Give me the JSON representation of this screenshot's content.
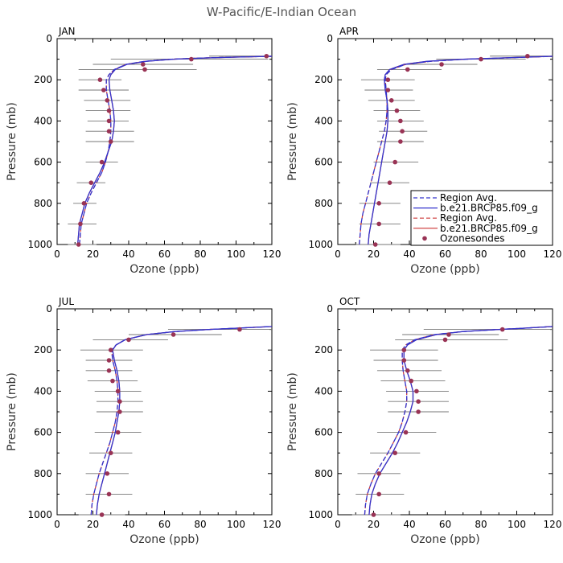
{
  "title": "W-Pacific/E-Indian Ocean",
  "chart_data": {
    "type": "line",
    "xlabel": "Ozone (ppb)",
    "ylabel": "Pressure (mb)",
    "xlim": [
      0,
      120
    ],
    "ylim": [
      1000,
      0
    ],
    "y_inverted": true,
    "xticks": [
      0,
      20,
      40,
      60,
      80,
      100,
      120
    ],
    "yticks": [
      0,
      200,
      400,
      600,
      800,
      1000
    ],
    "legend": {
      "location": "APR panel, right",
      "entries": [
        {
          "label": "Region Avg.",
          "color": "#3333cc",
          "style": "dashed"
        },
        {
          "label": "b.e21.BRCP85.f09_g",
          "color": "#3333cc",
          "style": "solid"
        },
        {
          "label": "Region Avg.",
          "color": "#cc3333",
          "style": "dashed"
        },
        {
          "label": "b.e21.BRCP85.f09_g",
          "color": "#cc3333",
          "style": "solid"
        },
        {
          "label": "Ozonesondes",
          "color": "#993355",
          "style": "marker"
        }
      ]
    },
    "panels": [
      {
        "label": "JAN",
        "model_pressure": [
          1000,
          950,
          900,
          850,
          800,
          750,
          700,
          650,
          600,
          550,
          500,
          450,
          400,
          350,
          300,
          250,
          200,
          175,
          150,
          125,
          110,
          100,
          95,
          90,
          86
        ],
        "model_solid": [
          11.5,
          12,
          12.5,
          14,
          15.5,
          18,
          21,
          24,
          26.5,
          28.5,
          30.5,
          31.5,
          32,
          31.5,
          30.5,
          29.5,
          29,
          30,
          32.5,
          39,
          50,
          65,
          80,
          100,
          120
        ],
        "model_dashed": [
          12.5,
          13,
          13.5,
          15,
          16.5,
          19,
          22,
          25,
          27,
          28.5,
          29.5,
          30,
          30,
          29.5,
          28.5,
          27.5,
          27.5,
          29,
          32,
          38.5,
          49,
          64,
          78,
          98,
          120
        ],
        "sondes": [
          {
            "p": 1000,
            "o3": 12,
            "lo": 6,
            "hi": 22
          },
          {
            "p": 900,
            "o3": 13,
            "lo": 6,
            "hi": 22
          },
          {
            "p": 800,
            "o3": 15,
            "lo": 9,
            "hi": 22
          },
          {
            "p": 700,
            "o3": 19,
            "lo": 11,
            "hi": 27
          },
          {
            "p": 600,
            "o3": 25,
            "lo": 16,
            "hi": 34
          },
          {
            "p": 500,
            "o3": 30,
            "lo": 16,
            "hi": 43
          },
          {
            "p": 450,
            "o3": 29,
            "lo": 16,
            "hi": 43
          },
          {
            "p": 400,
            "o3": 29,
            "lo": 17,
            "hi": 40
          },
          {
            "p": 350,
            "o3": 29,
            "lo": 16,
            "hi": 41
          },
          {
            "p": 300,
            "o3": 28,
            "lo": 15,
            "hi": 41
          },
          {
            "p": 250,
            "o3": 26,
            "lo": 12,
            "hi": 40
          },
          {
            "p": 200,
            "o3": 24,
            "lo": 12,
            "hi": 36
          },
          {
            "p": 150,
            "o3": 49,
            "lo": 12,
            "hi": 78
          },
          {
            "p": 125,
            "o3": 48,
            "lo": 20,
            "hi": 76
          },
          {
            "p": 100,
            "o3": 75,
            "lo": 30,
            "hi": 118
          },
          {
            "p": 85,
            "o3": 117,
            "lo": 85,
            "hi": 120
          }
        ]
      },
      {
        "label": "APR",
        "model_pressure": [
          1000,
          950,
          900,
          850,
          800,
          750,
          700,
          650,
          600,
          550,
          500,
          450,
          400,
          350,
          300,
          250,
          200,
          175,
          150,
          125,
          110,
          100,
          95,
          90,
          86
        ],
        "model_solid": [
          17,
          17.5,
          18.5,
          19.5,
          20.5,
          21.5,
          22.5,
          23.5,
          24.5,
          25.5,
          26.5,
          27.5,
          28,
          28,
          27.5,
          26.5,
          26,
          26.5,
          29,
          37,
          50,
          70,
          88,
          105,
          120
        ],
        "model_dashed": [
          12,
          12.5,
          13,
          14,
          15.5,
          17,
          18.5,
          20,
          21.5,
          23,
          24.5,
          26,
          27,
          27.5,
          27.5,
          27,
          26.5,
          27,
          30,
          38,
          52,
          72,
          90,
          107,
          120
        ],
        "sondes": [
          {
            "p": 1000,
            "o3": 21,
            "lo": 10,
            "hi": 35
          },
          {
            "p": 900,
            "o3": 23,
            "lo": 12,
            "hi": 35
          },
          {
            "p": 800,
            "o3": 23,
            "lo": 12,
            "hi": 35
          },
          {
            "p": 700,
            "o3": 29,
            "lo": 18,
            "hi": 40
          },
          {
            "p": 600,
            "o3": 32,
            "lo": 20,
            "hi": 45
          },
          {
            "p": 500,
            "o3": 35,
            "lo": 22,
            "hi": 48
          },
          {
            "p": 450,
            "o3": 36,
            "lo": 23,
            "hi": 50
          },
          {
            "p": 400,
            "o3": 35,
            "lo": 22,
            "hi": 48
          },
          {
            "p": 350,
            "o3": 33,
            "lo": 20,
            "hi": 46
          },
          {
            "p": 300,
            "o3": 30,
            "lo": 17,
            "hi": 43
          },
          {
            "p": 250,
            "o3": 28,
            "lo": 15,
            "hi": 42
          },
          {
            "p": 200,
            "o3": 28,
            "lo": 13,
            "hi": 43
          },
          {
            "p": 150,
            "o3": 39,
            "lo": 22,
            "hi": 58
          },
          {
            "p": 125,
            "o3": 58,
            "lo": 38,
            "hi": 78
          },
          {
            "p": 100,
            "o3": 80,
            "lo": 55,
            "hi": 105
          },
          {
            "p": 85,
            "o3": 106,
            "lo": 85,
            "hi": 120
          }
        ]
      },
      {
        "label": "JUL",
        "model_pressure": [
          1000,
          950,
          900,
          850,
          800,
          750,
          700,
          650,
          600,
          550,
          500,
          450,
          400,
          350,
          300,
          250,
          200,
          175,
          150,
          125,
          110,
          100,
          95,
          90,
          86
        ],
        "model_solid": [
          22,
          22.5,
          23.5,
          25,
          26.5,
          28,
          29.5,
          31,
          32.5,
          33.5,
          34.5,
          35,
          35,
          34.5,
          33.5,
          32,
          31,
          33,
          38,
          50,
          66,
          85,
          98,
          110,
          120
        ],
        "model_dashed": [
          19,
          19.5,
          20.5,
          22,
          23.5,
          25.5,
          27.5,
          29.5,
          31,
          32.5,
          33.5,
          34,
          34,
          33.5,
          32.5,
          31,
          30.5,
          33,
          38,
          50,
          66,
          85,
          98,
          110,
          120
        ],
        "sondes": [
          {
            "p": 1000,
            "o3": 25,
            "lo": 12,
            "hi": 38
          },
          {
            "p": 900,
            "o3": 29,
            "lo": 16,
            "hi": 42
          },
          {
            "p": 800,
            "o3": 28,
            "lo": 16,
            "hi": 40
          },
          {
            "p": 700,
            "o3": 30,
            "lo": 18,
            "hi": 42
          },
          {
            "p": 600,
            "o3": 34,
            "lo": 21,
            "hi": 47
          },
          {
            "p": 500,
            "o3": 35,
            "lo": 22,
            "hi": 48
          },
          {
            "p": 450,
            "o3": 35,
            "lo": 22,
            "hi": 48
          },
          {
            "p": 400,
            "o3": 34,
            "lo": 21,
            "hi": 47
          },
          {
            "p": 350,
            "o3": 31,
            "lo": 17,
            "hi": 45
          },
          {
            "p": 300,
            "o3": 29,
            "lo": 16,
            "hi": 42
          },
          {
            "p": 250,
            "o3": 29,
            "lo": 16,
            "hi": 42
          },
          {
            "p": 200,
            "o3": 30,
            "lo": 13,
            "hi": 48
          },
          {
            "p": 150,
            "o3": 40,
            "lo": 20,
            "hi": 62
          },
          {
            "p": 125,
            "o3": 65,
            "lo": 40,
            "hi": 92
          },
          {
            "p": 100,
            "o3": 102,
            "lo": 62,
            "hi": 120
          }
        ]
      },
      {
        "label": "OCT",
        "model_pressure": [
          1000,
          950,
          900,
          850,
          800,
          750,
          700,
          650,
          600,
          550,
          500,
          450,
          400,
          350,
          300,
          250,
          200,
          175,
          150,
          125,
          110,
          100,
          95,
          90,
          86
        ],
        "model_solid": [
          17.5,
          18,
          19,
          21,
          23.5,
          27,
          30.5,
          33.5,
          36,
          38.5,
          40.5,
          42,
          42,
          40.5,
          38.5,
          37,
          37,
          39,
          44,
          55,
          70,
          90,
          102,
          112,
          120
        ],
        "model_dashed": [
          15,
          15.5,
          16.5,
          18.5,
          21,
          24.5,
          28,
          31,
          34,
          36,
          37.5,
          38.5,
          38.5,
          37.5,
          36.5,
          36,
          36,
          38,
          43,
          54,
          70,
          90,
          102,
          112,
          120
        ],
        "sondes": [
          {
            "p": 1000,
            "o3": 20,
            "lo": 8,
            "hi": 35
          },
          {
            "p": 900,
            "o3": 23,
            "lo": 10,
            "hi": 37
          },
          {
            "p": 800,
            "o3": 23,
            "lo": 11,
            "hi": 35
          },
          {
            "p": 700,
            "o3": 32,
            "lo": 18,
            "hi": 46
          },
          {
            "p": 600,
            "o3": 38,
            "lo": 22,
            "hi": 55
          },
          {
            "p": 500,
            "o3": 45,
            "lo": 28,
            "hi": 62
          },
          {
            "p": 450,
            "o3": 45,
            "lo": 28,
            "hi": 62
          },
          {
            "p": 400,
            "o3": 44,
            "lo": 27,
            "hi": 62
          },
          {
            "p": 350,
            "o3": 41,
            "lo": 24,
            "hi": 60
          },
          {
            "p": 300,
            "o3": 39,
            "lo": 22,
            "hi": 58
          },
          {
            "p": 250,
            "o3": 37,
            "lo": 20,
            "hi": 56
          },
          {
            "p": 200,
            "o3": 37,
            "lo": 18,
            "hi": 56
          },
          {
            "p": 150,
            "o3": 60,
            "lo": 32,
            "hi": 95
          },
          {
            "p": 125,
            "o3": 62,
            "lo": 36,
            "hi": 90
          },
          {
            "p": 100,
            "o3": 92,
            "lo": 48,
            "hi": 120
          }
        ]
      }
    ]
  }
}
